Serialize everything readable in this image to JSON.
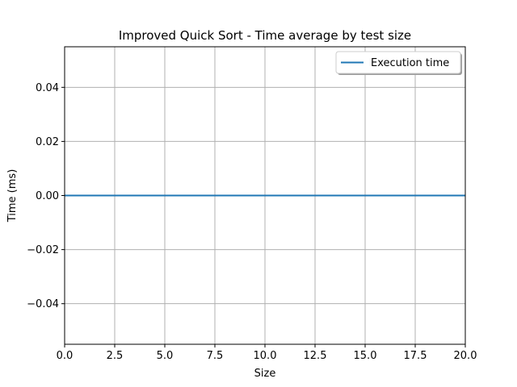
{
  "chart_data": {
    "type": "line",
    "title": "Improved Quick Sort - Time average by test size",
    "xlabel": "Size",
    "ylabel": "Time (ms)",
    "xlim": [
      0,
      20
    ],
    "ylim": [
      -0.055,
      0.055
    ],
    "x_ticks": [
      0,
      2.5,
      5,
      7.5,
      10,
      12.5,
      15,
      17.5,
      20
    ],
    "x_tick_labels": [
      "0.0",
      "2.5",
      "5.0",
      "7.5",
      "10.0",
      "12.5",
      "15.0",
      "17.5",
      "20.0"
    ],
    "y_ticks": [
      -0.04,
      -0.02,
      0,
      0.02,
      0.04
    ],
    "y_tick_labels": [
      "−0.04",
      "−0.02",
      "0.00",
      "0.02",
      "0.04"
    ],
    "grid": true,
    "legend_position": "top-right",
    "series": [
      {
        "name": "Execution time",
        "color": "#1f77b4",
        "x": [
          0,
          20
        ],
        "y": [
          0,
          0
        ]
      }
    ]
  }
}
